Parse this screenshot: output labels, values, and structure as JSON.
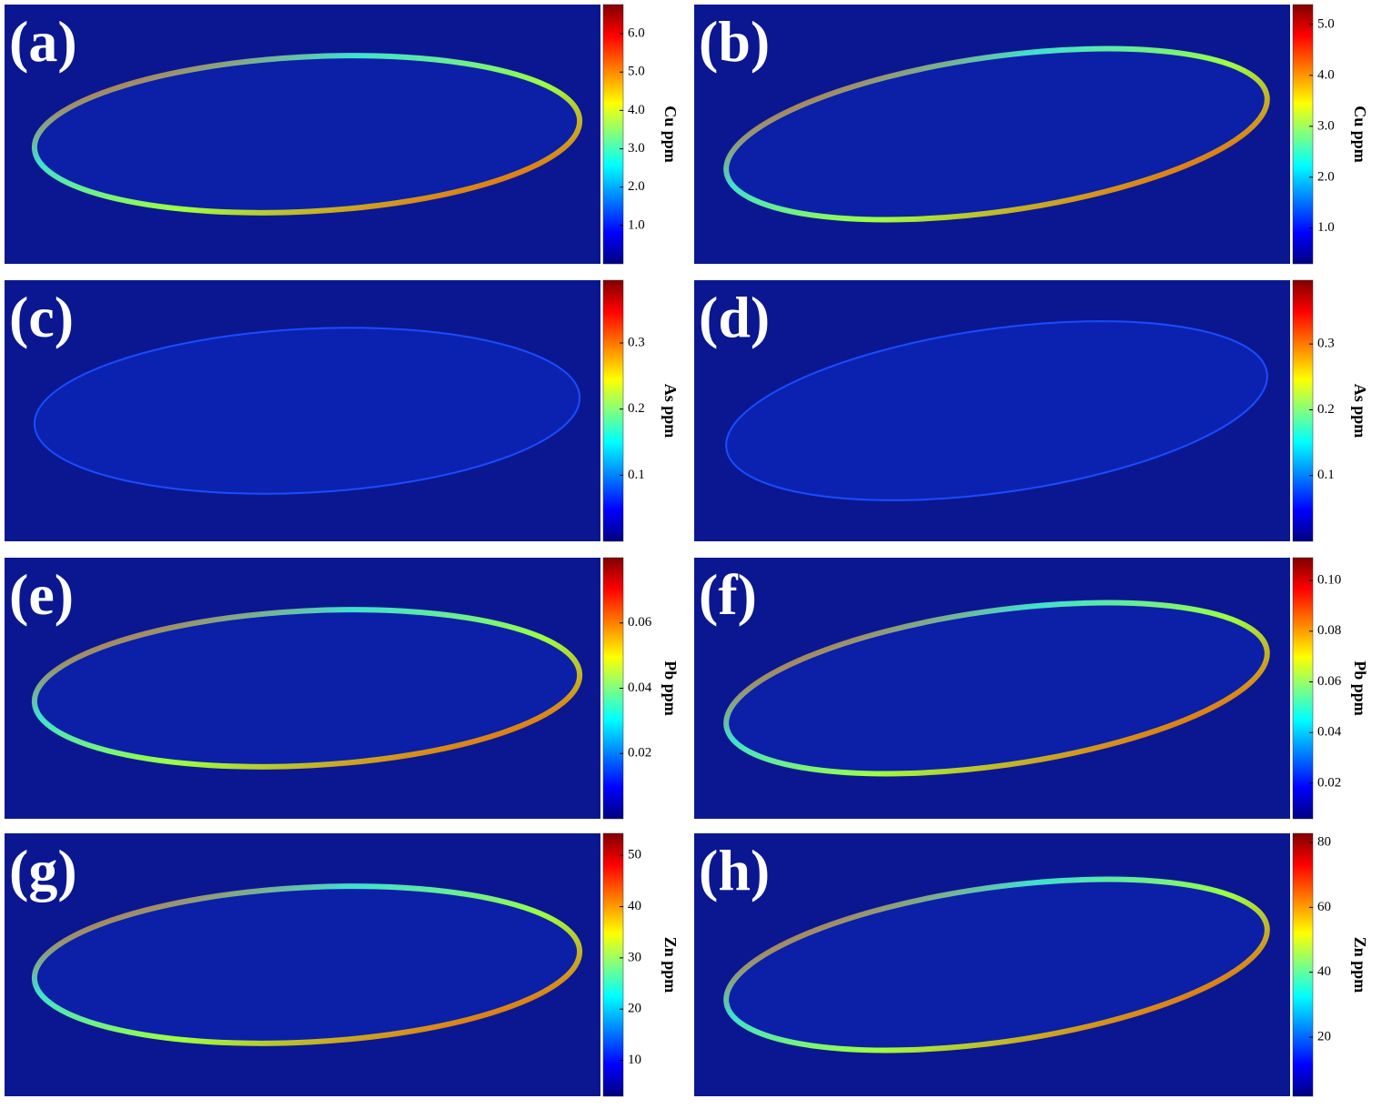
{
  "panels": [
    {
      "label": "(a)",
      "colorbar_label": "Cu ppm",
      "clim": [
        0,
        6.76
      ],
      "ticks": [
        {
          "value": 6,
          "label": "6.0"
        },
        {
          "value": 5,
          "label": "5.0"
        },
        {
          "value": 4,
          "label": "4.0"
        },
        {
          "value": 3,
          "label": "3.0"
        },
        {
          "value": 2,
          "label": "2.0"
        },
        {
          "value": 1,
          "label": "1.0"
        }
      ]
    },
    {
      "label": "(b)",
      "colorbar_label": "Cu ppm",
      "clim": [
        0.3,
        5.39
      ],
      "ticks": [
        {
          "value": 5,
          "label": "5.0"
        },
        {
          "value": 4,
          "label": "4.0"
        },
        {
          "value": 3,
          "label": "3.0"
        },
        {
          "value": 2,
          "label": "2.0"
        },
        {
          "value": 1,
          "label": "1.0"
        }
      ]
    },
    {
      "label": "(c)",
      "colorbar_label": "As ppm",
      "clim": [
        0,
        0.395
      ],
      "ticks": [
        0.3,
        0.2,
        0.1
      ]
    },
    {
      "label": "(d)",
      "colorbar_label": "As ppm",
      "clim": [
        0,
        0.397
      ],
      "ticks": [
        0.3,
        0.2,
        0.1
      ]
    },
    {
      "label": "(e)",
      "colorbar_label": "Pb ppm",
      "clim": [
        0,
        0.08
      ],
      "ticks": [
        0.06,
        0.04,
        0.02
      ]
    },
    {
      "label": "(f)",
      "colorbar_label": "Pb ppm",
      "clim": [
        0.006,
        0.109
      ],
      "ticks": [
        {
          "value": 0.1,
          "label": "0.10"
        },
        0.08,
        0.06,
        0.04,
        0.02
      ]
    },
    {
      "label": "(g)",
      "colorbar_label": "Zn ppm",
      "clim": [
        3,
        54.3
      ],
      "ticks": [
        50,
        40,
        30,
        20,
        10
      ]
    },
    {
      "label": "(h)",
      "colorbar_label": "Zn ppm",
      "clim": [
        1.8,
        82.8
      ],
      "ticks": [
        80,
        60,
        40,
        20
      ]
    }
  ]
}
